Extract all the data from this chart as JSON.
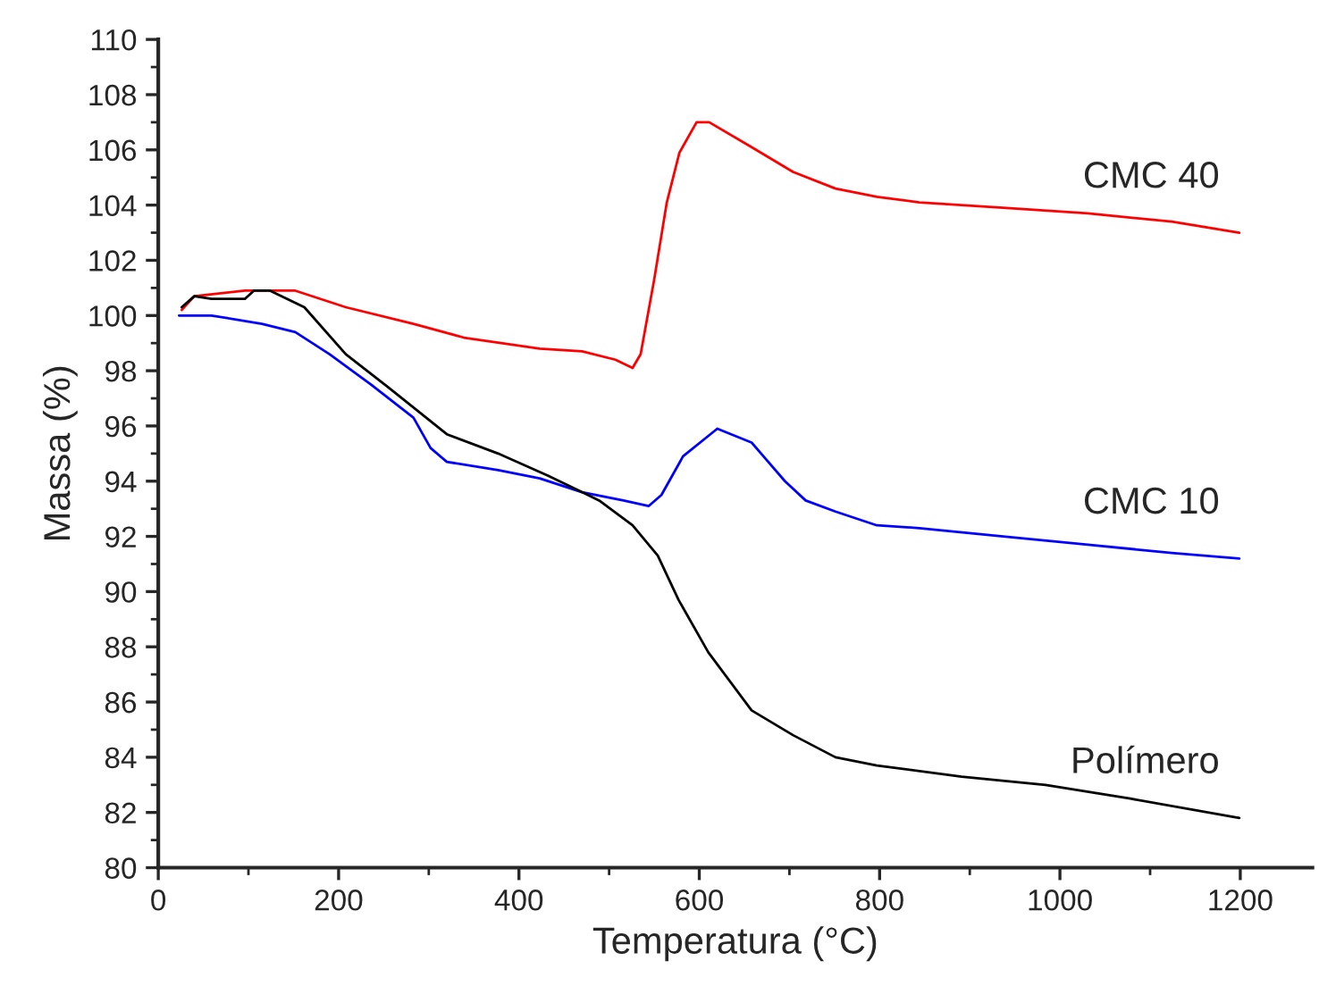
{
  "chart_data": {
    "type": "line",
    "xlabel": "Temperatura (°C)",
    "ylabel": "Massa (%)",
    "xlim": [
      0,
      1280
    ],
    "ylim": [
      80,
      110
    ],
    "xticks": [
      0,
      200,
      400,
      600,
      800,
      1000,
      1200
    ],
    "yticks": [
      80,
      82,
      84,
      86,
      88,
      90,
      92,
      94,
      96,
      98,
      100,
      102,
      104,
      106,
      108,
      110
    ],
    "grid": false,
    "marker": "none",
    "line_style": "solid",
    "series": [
      {
        "name": "CMC 40",
        "color": "#ff0000",
        "x": [
          26,
          40,
          96,
          152,
          208,
          283,
          339,
          423,
          470,
          507,
          526,
          535,
          550,
          564,
          578,
          597,
          611,
          658,
          704,
          751,
          797,
          844,
          937,
          1031,
          1124,
          1199
        ],
        "values": [
          100.2,
          100.7,
          100.9,
          100.9,
          100.3,
          99.7,
          99.2,
          98.8,
          98.7,
          98.4,
          98.1,
          98.6,
          101.3,
          104.1,
          105.9,
          107.0,
          107.0,
          106.1,
          105.2,
          104.6,
          104.3,
          104.1,
          103.9,
          103.7,
          103.4,
          103.0
        ]
      },
      {
        "name": "CMC 10",
        "color": "#0000ff",
        "x": [
          23,
          59,
          115,
          152,
          190,
          236,
          283,
          302,
          320,
          377,
          423,
          470,
          516,
          544,
          558,
          582,
          620,
          658,
          695,
          718,
          751,
          797,
          844,
          937,
          1031,
          1124,
          1199
        ],
        "values": [
          100.0,
          100.0,
          99.7,
          99.4,
          98.6,
          97.5,
          96.3,
          95.2,
          94.7,
          94.4,
          94.1,
          93.6,
          93.3,
          93.1,
          93.5,
          94.9,
          95.9,
          95.4,
          94.0,
          93.3,
          92.9,
          92.4,
          92.3,
          92.0,
          91.7,
          91.4,
          91.2
        ]
      },
      {
        "name": "Polímero",
        "color": "#000000",
        "x": [
          26,
          40,
          59,
          96,
          106,
          124,
          162,
          208,
          255,
          320,
          377,
          432,
          470,
          489,
          526,
          554,
          577,
          610,
          658,
          704,
          751,
          797,
          891,
          984,
          1078,
          1199
        ],
        "values": [
          100.3,
          100.7,
          100.6,
          100.6,
          100.9,
          100.9,
          100.3,
          98.6,
          97.4,
          95.7,
          95.0,
          94.2,
          93.6,
          93.3,
          92.4,
          91.3,
          89.7,
          87.8,
          85.7,
          84.8,
          84.0,
          83.7,
          83.3,
          83.0,
          82.5,
          81.8
        ]
      }
    ]
  }
}
